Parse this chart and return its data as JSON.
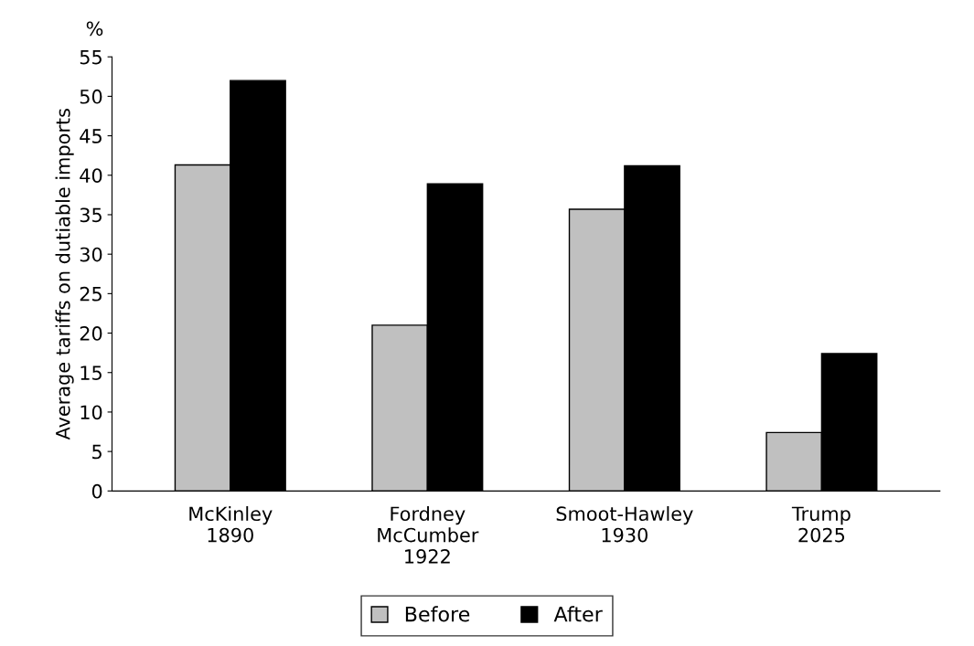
{
  "chart_data": {
    "type": "bar",
    "ylabel": "Average tariffs on dutiable imports",
    "annotations": [
      "%"
    ],
    "categories": [
      "McKinley\n1890",
      "Fordney\nMcCumber\n1922",
      "Smoot-Hawley\n1930",
      "Trump\n2025"
    ],
    "series": [
      {
        "name": "Before",
        "color": "#c0c0c0",
        "values": [
          41.3,
          21.0,
          35.7,
          7.4
        ]
      },
      {
        "name": "After",
        "color": "#000000",
        "values": [
          52.0,
          38.9,
          41.2,
          17.4
        ]
      }
    ],
    "ylim": [
      0,
      55
    ],
    "yticks": [
      0,
      5,
      10,
      15,
      20,
      25,
      30,
      35,
      40,
      45,
      50,
      55
    ],
    "grid": false,
    "legend": "bottom"
  }
}
